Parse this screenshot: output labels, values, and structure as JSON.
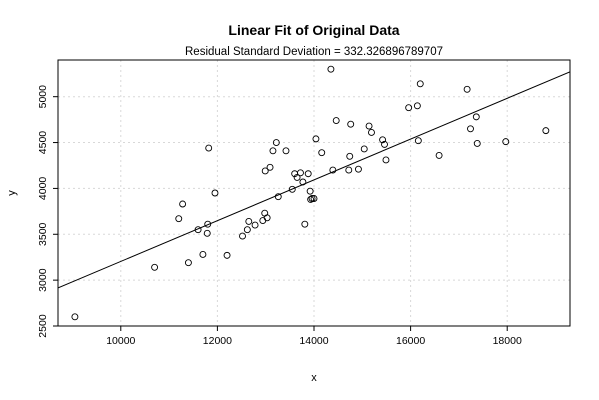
{
  "chart_data": {
    "type": "scatter",
    "title": "Linear Fit of Original Data",
    "subtitle": "Residual Standard Deviation =  332.326896789707",
    "xlabel": "x",
    "ylabel": "y",
    "xlim": [
      8700,
      19300
    ],
    "ylim": [
      2500,
      5400
    ],
    "xticks": [
      "10000",
      "12000",
      "14000",
      "16000",
      "18000"
    ],
    "xtick_values": [
      10000,
      12000,
      14000,
      16000,
      18000
    ],
    "yticks": [
      "2500",
      "3000",
      "3500",
      "4000",
      "4500",
      "5000"
    ],
    "ytick_values": [
      2500,
      3000,
      3500,
      4000,
      4500,
      5000
    ],
    "grid": true,
    "points": [
      [
        9050,
        2600
      ],
      [
        10700,
        3140
      ],
      [
        11200,
        3670
      ],
      [
        11280,
        3830
      ],
      [
        11400,
        3190
      ],
      [
        11600,
        3550
      ],
      [
        11700,
        3280
      ],
      [
        11790,
        3510
      ],
      [
        11800,
        3610
      ],
      [
        11820,
        4440
      ],
      [
        11950,
        3950
      ],
      [
        12200,
        3270
      ],
      [
        12520,
        3480
      ],
      [
        12620,
        3550
      ],
      [
        12650,
        3640
      ],
      [
        12780,
        3600
      ],
      [
        12940,
        3650
      ],
      [
        12980,
        3730
      ],
      [
        12990,
        4190
      ],
      [
        13030,
        3680
      ],
      [
        13090,
        4230
      ],
      [
        13150,
        4410
      ],
      [
        13220,
        4500
      ],
      [
        13260,
        3910
      ],
      [
        13420,
        4410
      ],
      [
        13550,
        3990
      ],
      [
        13600,
        4160
      ],
      [
        13650,
        4120
      ],
      [
        13720,
        4170
      ],
      [
        13770,
        4070
      ],
      [
        13810,
        3610
      ],
      [
        13880,
        4160
      ],
      [
        13920,
        3970
      ],
      [
        13930,
        3880
      ],
      [
        13960,
        3890
      ],
      [
        14000,
        3890
      ],
      [
        14040,
        4540
      ],
      [
        14160,
        4390
      ],
      [
        14350,
        5300
      ],
      [
        14390,
        4200
      ],
      [
        14460,
        4740
      ],
      [
        14720,
        4200
      ],
      [
        14740,
        4350
      ],
      [
        14760,
        4700
      ],
      [
        14920,
        4210
      ],
      [
        15040,
        4430
      ],
      [
        15140,
        4680
      ],
      [
        15190,
        4610
      ],
      [
        15420,
        4530
      ],
      [
        15460,
        4480
      ],
      [
        15490,
        4310
      ],
      [
        15960,
        4880
      ],
      [
        16140,
        4900
      ],
      [
        16160,
        4520
      ],
      [
        16200,
        5140
      ],
      [
        16590,
        4360
      ],
      [
        17170,
        5080
      ],
      [
        17240,
        4650
      ],
      [
        17360,
        4780
      ],
      [
        17380,
        4490
      ],
      [
        17970,
        4510
      ],
      [
        18800,
        4630
      ]
    ],
    "fit_line": {
      "intercept": 981,
      "slope": 0.2223
    }
  }
}
